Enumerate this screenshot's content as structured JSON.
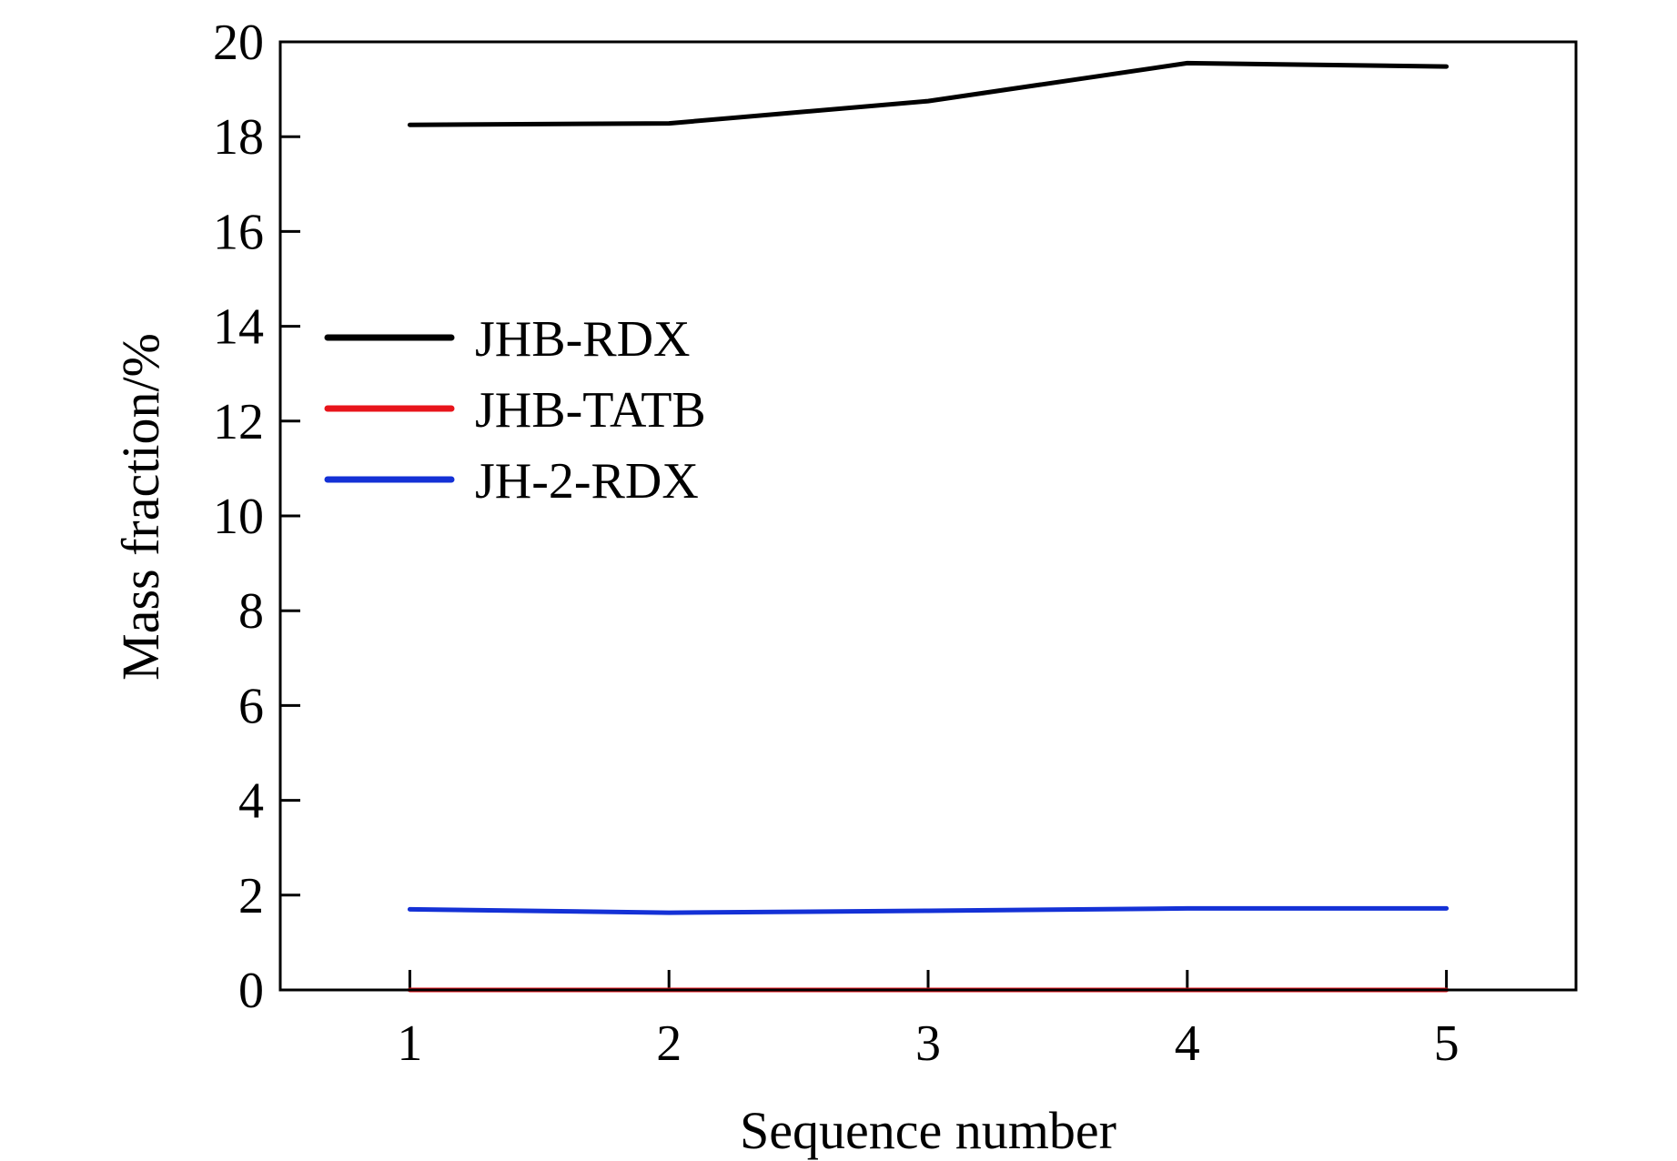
{
  "chart_data": {
    "type": "line",
    "xlabel": "Sequence number",
    "ylabel": "Mass fraction/%",
    "x": [
      1,
      2,
      3,
      4,
      5
    ],
    "xticks": [
      "1",
      "2",
      "3",
      "4",
      "5"
    ],
    "yticks": [
      "0",
      "2",
      "4",
      "6",
      "8",
      "10",
      "12",
      "14",
      "16",
      "18",
      "20"
    ],
    "xlim": [
      0.5,
      5.5
    ],
    "ylim": [
      0,
      20
    ],
    "grid": false,
    "legend_position": "center-left",
    "series": [
      {
        "name": "JHB-RDX",
        "color": "#000000",
        "values": [
          18.25,
          18.28,
          18.75,
          19.55,
          19.48
        ]
      },
      {
        "name": "JHB-TATB",
        "color": "#e8141b",
        "values": [
          0.0,
          0.0,
          0.0,
          0.0,
          0.0
        ]
      },
      {
        "name": "JH-2-RDX",
        "color": "#1431d6",
        "values": [
          1.7,
          1.63,
          1.67,
          1.72,
          1.72
        ]
      }
    ]
  }
}
